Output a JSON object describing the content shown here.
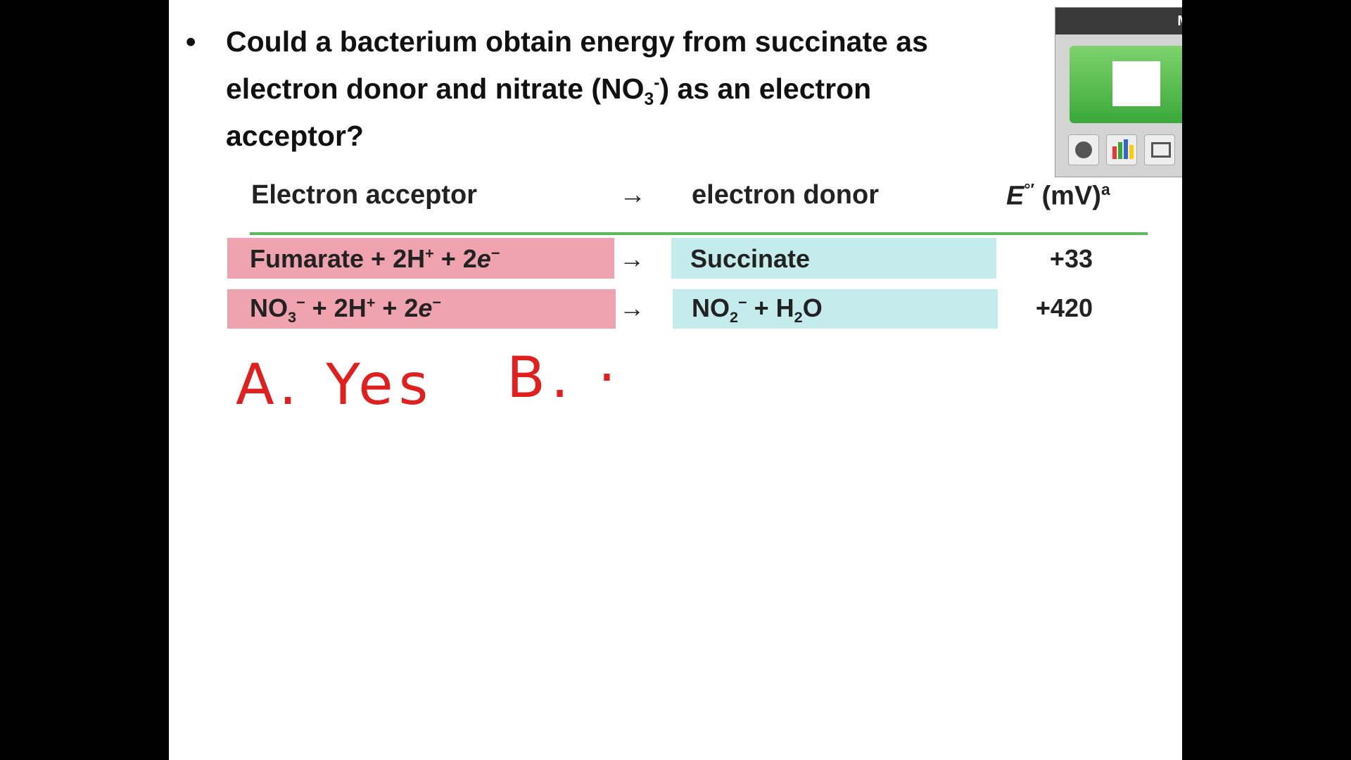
{
  "question": {
    "line1": "Could a bacterium obtain energy from succinate as",
    "line2": [
      "electron donor and nitrate (NO",
      "3",
      "-",
      ") as an electron"
    ],
    "line3": "acceptor?"
  },
  "table": {
    "header": {
      "acceptor": "Electron acceptor",
      "arrow": "→",
      "donor": "electron donor",
      "potential": [
        "E",
        "°′",
        " (mV)",
        "a"
      ]
    },
    "rows": [
      {
        "acceptor": [
          "Fumarate + 2H",
          "+",
          " + 2",
          "e",
          "−"
        ],
        "arrow": "→",
        "donor": [
          "Succinate"
        ],
        "potential": "+33"
      },
      {
        "acceptor": [
          "NO",
          "3",
          "−",
          " + 2H",
          "+",
          " + 2",
          "e",
          "−"
        ],
        "arrow": "→",
        "donor": [
          "NO",
          "2",
          "−",
          " + H",
          "2",
          "O"
        ],
        "potential": "+420"
      }
    ]
  },
  "handwriting": {
    "a": "A. Yes",
    "b": "B. ·"
  },
  "widget": {
    "title": "M"
  }
}
